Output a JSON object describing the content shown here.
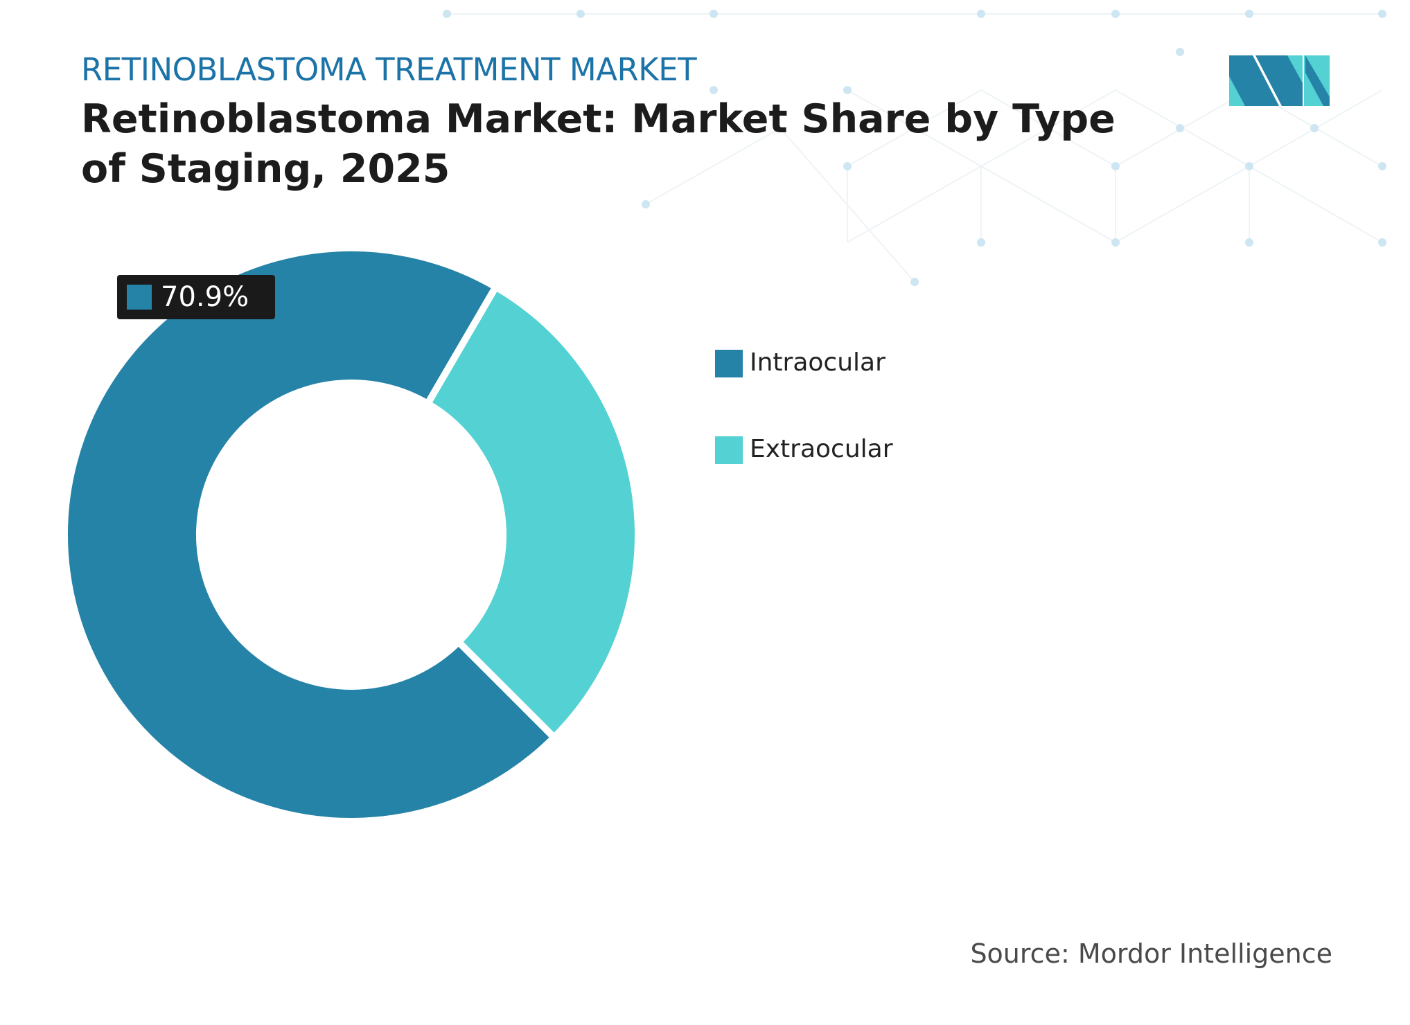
{
  "chart_data": {
    "type": "donut",
    "kicker": "RETINOBLASTOMA TREATMENT MARKET",
    "title": "Retinoblastoma Market: Market Share by Type of Staging, 2025",
    "categories": [
      "Intraocular",
      "Extraocular"
    ],
    "values": [
      70.9,
      29.1
    ],
    "value_labels": [
      "70.9%",
      null
    ],
    "colors": [
      "#2683a8",
      "#53d1d3"
    ],
    "source": "Source: Mordor Intelligence"
  }
}
